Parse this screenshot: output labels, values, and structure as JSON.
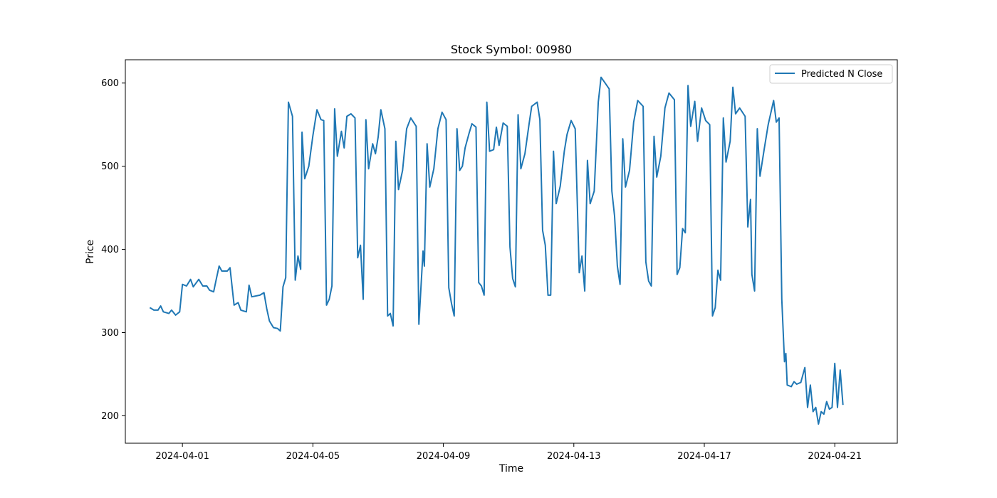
{
  "chart_data": {
    "type": "line",
    "title": "Stock Symbol: 00980",
    "xlabel": "Time",
    "ylabel": "Price",
    "xlim": [
      "2024-03-30T06:00",
      "2024-04-22T22:00"
    ],
    "ylim": [
      167,
      628
    ],
    "x_ticks": [
      "2024-04-01",
      "2024-04-05",
      "2024-04-09",
      "2024-04-13",
      "2024-04-17",
      "2024-04-21"
    ],
    "y_ticks": [
      200,
      300,
      400,
      500,
      600
    ],
    "grid": false,
    "legend_position": "top-right",
    "series": [
      {
        "name": "Predicted N Close",
        "color": "#1f77b4",
        "points": [
          [
            "2024-03-31T00:00",
            330
          ],
          [
            "2024-03-31T03:00",
            327
          ],
          [
            "2024-03-31T06:00",
            327
          ],
          [
            "2024-03-31T08:00",
            332
          ],
          [
            "2024-03-31T10:00",
            325
          ],
          [
            "2024-03-31T14:00",
            323
          ],
          [
            "2024-03-31T16:00",
            327
          ],
          [
            "2024-03-31T19:00",
            321
          ],
          [
            "2024-03-31T22:00",
            325
          ],
          [
            "2024-04-01T00:00",
            358
          ],
          [
            "2024-04-01T03:00",
            356
          ],
          [
            "2024-04-01T06:00",
            364
          ],
          [
            "2024-04-01T08:00",
            355
          ],
          [
            "2024-04-01T12:00",
            364
          ],
          [
            "2024-04-01T15:00",
            356
          ],
          [
            "2024-04-01T18:00",
            356
          ],
          [
            "2024-04-01T20:00",
            351
          ],
          [
            "2024-04-01T23:00",
            349
          ],
          [
            "2024-04-02T01:00",
            365
          ],
          [
            "2024-04-02T03:00",
            380
          ],
          [
            "2024-04-02T05:00",
            374
          ],
          [
            "2024-04-02T09:00",
            374
          ],
          [
            "2024-04-02T11:00",
            378
          ],
          [
            "2024-04-02T14:00",
            333
          ],
          [
            "2024-04-02T17:00",
            336
          ],
          [
            "2024-04-02T19:00",
            327
          ],
          [
            "2024-04-02T23:00",
            325
          ],
          [
            "2024-04-03T01:00",
            357
          ],
          [
            "2024-04-03T03:00",
            343
          ],
          [
            "2024-04-03T09:00",
            345
          ],
          [
            "2024-04-03T12:00",
            348
          ],
          [
            "2024-04-03T14:00",
            329
          ],
          [
            "2024-04-03T16:00",
            314
          ],
          [
            "2024-04-03T19:00",
            306
          ],
          [
            "2024-04-03T22:00",
            305
          ],
          [
            "2024-04-04T00:00",
            302
          ],
          [
            "2024-04-04T02:00",
            355
          ],
          [
            "2024-04-04T04:00",
            366
          ],
          [
            "2024-04-04T06:00",
            577
          ],
          [
            "2024-04-04T09:00",
            560
          ],
          [
            "2024-04-04T11:00",
            363
          ],
          [
            "2024-04-04T13:00",
            392
          ],
          [
            "2024-04-04T15:00",
            376
          ],
          [
            "2024-04-04T16:00",
            541
          ],
          [
            "2024-04-04T18:00",
            485
          ],
          [
            "2024-04-04T21:00",
            500
          ],
          [
            "2024-04-05T00:00",
            537
          ],
          [
            "2024-04-05T03:00",
            568
          ],
          [
            "2024-04-05T06:00",
            556
          ],
          [
            "2024-04-05T08:00",
            555
          ],
          [
            "2024-04-05T10:00",
            333
          ],
          [
            "2024-04-05T12:00",
            340
          ],
          [
            "2024-04-05T14:00",
            356
          ],
          [
            "2024-04-05T16:00",
            569
          ],
          [
            "2024-04-05T18:00",
            512
          ],
          [
            "2024-04-05T21:00",
            542
          ],
          [
            "2024-04-05T23:00",
            522
          ],
          [
            "2024-04-06T01:00",
            560
          ],
          [
            "2024-04-06T04:00",
            563
          ],
          [
            "2024-04-06T07:00",
            558
          ],
          [
            "2024-04-06T09:00",
            390
          ],
          [
            "2024-04-06T11:00",
            405
          ],
          [
            "2024-04-06T13:00",
            340
          ],
          [
            "2024-04-06T15:00",
            556
          ],
          [
            "2024-04-06T17:00",
            497
          ],
          [
            "2024-04-06T20:00",
            527
          ],
          [
            "2024-04-06T22:00",
            515
          ],
          [
            "2024-04-07T00:00",
            535
          ],
          [
            "2024-04-07T02:00",
            568
          ],
          [
            "2024-04-07T05:00",
            545
          ],
          [
            "2024-04-07T07:00",
            320
          ],
          [
            "2024-04-07T09:00",
            323
          ],
          [
            "2024-04-07T11:00",
            308
          ],
          [
            "2024-04-07T13:00",
            530
          ],
          [
            "2024-04-07T15:00",
            472
          ],
          [
            "2024-04-07T18:00",
            495
          ],
          [
            "2024-04-07T21:00",
            545
          ],
          [
            "2024-04-08T00:00",
            558
          ],
          [
            "2024-04-08T04:00",
            548
          ],
          [
            "2024-04-08T06:00",
            310
          ],
          [
            "2024-04-08T09:00",
            398
          ],
          [
            "2024-04-08T10:00",
            380
          ],
          [
            "2024-04-08T12:00",
            527
          ],
          [
            "2024-04-08T14:00",
            475
          ],
          [
            "2024-04-08T17:00",
            497
          ],
          [
            "2024-04-08T20:00",
            545
          ],
          [
            "2024-04-08T23:00",
            565
          ],
          [
            "2024-04-09T02:00",
            556
          ],
          [
            "2024-04-09T04:00",
            354
          ],
          [
            "2024-04-09T06:00",
            335
          ],
          [
            "2024-04-09T08:00",
            320
          ],
          [
            "2024-04-09T10:00",
            545
          ],
          [
            "2024-04-09T12:00",
            495
          ],
          [
            "2024-04-09T14:00",
            500
          ],
          [
            "2024-04-09T16:00",
            522
          ],
          [
            "2024-04-09T19:00",
            540
          ],
          [
            "2024-04-09T21:00",
            551
          ],
          [
            "2024-04-10T00:00",
            547
          ],
          [
            "2024-04-10T02:00",
            360
          ],
          [
            "2024-04-10T04:00",
            356
          ],
          [
            "2024-04-10T06:00",
            345
          ],
          [
            "2024-04-10T08:00",
            577
          ],
          [
            "2024-04-10T10:00",
            518
          ],
          [
            "2024-04-10T13:00",
            520
          ],
          [
            "2024-04-10T15:00",
            547
          ],
          [
            "2024-04-10T17:00",
            525
          ],
          [
            "2024-04-10T20:00",
            552
          ],
          [
            "2024-04-10T23:00",
            548
          ],
          [
            "2024-04-11T01:00",
            403
          ],
          [
            "2024-04-11T03:00",
            365
          ],
          [
            "2024-04-11T05:00",
            355
          ],
          [
            "2024-04-11T07:00",
            562
          ],
          [
            "2024-04-11T09:00",
            497
          ],
          [
            "2024-04-11T12:00",
            515
          ],
          [
            "2024-04-11T15:00",
            550
          ],
          [
            "2024-04-11T17:00",
            572
          ],
          [
            "2024-04-11T21:00",
            577
          ],
          [
            "2024-04-11T23:00",
            556
          ],
          [
            "2024-04-12T01:00",
            423
          ],
          [
            "2024-04-12T03:00",
            405
          ],
          [
            "2024-04-12T05:00",
            345
          ],
          [
            "2024-04-12T07:00",
            345
          ],
          [
            "2024-04-12T09:00",
            518
          ],
          [
            "2024-04-12T11:00",
            455
          ],
          [
            "2024-04-12T14:00",
            476
          ],
          [
            "2024-04-12T17:00",
            518
          ],
          [
            "2024-04-12T19:00",
            538
          ],
          [
            "2024-04-12T22:00",
            555
          ],
          [
            "2024-04-13T01:00",
            545
          ],
          [
            "2024-04-13T04:00",
            372
          ],
          [
            "2024-04-13T06:00",
            392
          ],
          [
            "2024-04-13T08:00",
            350
          ],
          [
            "2024-04-13T10:00",
            507
          ],
          [
            "2024-04-13T12:00",
            455
          ],
          [
            "2024-04-13T15:00",
            470
          ],
          [
            "2024-04-13T18:00",
            577
          ],
          [
            "2024-04-13T20:00",
            607
          ],
          [
            "2024-04-13T23:00",
            600
          ],
          [
            "2024-04-14T02:00",
            593
          ],
          [
            "2024-04-14T04:00",
            470
          ],
          [
            "2024-04-14T06:00",
            440
          ],
          [
            "2024-04-14T08:00",
            380
          ],
          [
            "2024-04-14T10:00",
            358
          ],
          [
            "2024-04-14T12:00",
            533
          ],
          [
            "2024-04-14T14:00",
            475
          ],
          [
            "2024-04-14T17:00",
            495
          ],
          [
            "2024-04-14T20:00",
            553
          ],
          [
            "2024-04-14T23:00",
            579
          ],
          [
            "2024-04-15T03:00",
            572
          ],
          [
            "2024-04-15T05:00",
            385
          ],
          [
            "2024-04-15T07:00",
            362
          ],
          [
            "2024-04-15T09:00",
            356
          ],
          [
            "2024-04-15T11:00",
            536
          ],
          [
            "2024-04-15T13:00",
            487
          ],
          [
            "2024-04-15T16:00",
            512
          ],
          [
            "2024-04-15T19:00",
            570
          ],
          [
            "2024-04-15T22:00",
            588
          ],
          [
            "2024-04-16T02:00",
            580
          ],
          [
            "2024-04-16T04:00",
            370
          ],
          [
            "2024-04-16T06:00",
            378
          ],
          [
            "2024-04-16T08:00",
            425
          ],
          [
            "2024-04-16T10:00",
            420
          ],
          [
            "2024-04-16T12:00",
            597
          ],
          [
            "2024-04-16T14:00",
            548
          ],
          [
            "2024-04-16T17:00",
            578
          ],
          [
            "2024-04-16T19:00",
            530
          ],
          [
            "2024-04-16T22:00",
            570
          ],
          [
            "2024-04-17T01:00",
            555
          ],
          [
            "2024-04-17T04:00",
            550
          ],
          [
            "2024-04-17T06:00",
            320
          ],
          [
            "2024-04-17T08:00",
            330
          ],
          [
            "2024-04-17T10:00",
            375
          ],
          [
            "2024-04-17T12:00",
            363
          ],
          [
            "2024-04-17T14:00",
            558
          ],
          [
            "2024-04-17T16:00",
            505
          ],
          [
            "2024-04-17T19:00",
            530
          ],
          [
            "2024-04-17T21:00",
            595
          ],
          [
            "2024-04-17T23:00",
            563
          ],
          [
            "2024-04-18T02:00",
            570
          ],
          [
            "2024-04-18T06:00",
            560
          ],
          [
            "2024-04-18T08:00",
            427
          ],
          [
            "2024-04-18T10:00",
            460
          ],
          [
            "2024-04-18T11:00",
            370
          ],
          [
            "2024-04-18T13:00",
            350
          ],
          [
            "2024-04-18T15:00",
            545
          ],
          [
            "2024-04-18T17:00",
            488
          ],
          [
            "2024-04-18T20:00",
            520
          ],
          [
            "2024-04-18T23:00",
            550
          ],
          [
            "2024-04-19T03:00",
            579
          ],
          [
            "2024-04-19T05:00",
            553
          ],
          [
            "2024-04-19T07:00",
            558
          ],
          [
            "2024-04-19T09:00",
            340
          ],
          [
            "2024-04-19T11:00",
            265
          ],
          [
            "2024-04-19T12:00",
            275
          ],
          [
            "2024-04-19T13:00",
            237
          ],
          [
            "2024-04-19T16:00",
            235
          ],
          [
            "2024-04-19T18:00",
            241
          ],
          [
            "2024-04-19T20:00",
            238
          ],
          [
            "2024-04-19T23:00",
            240
          ],
          [
            "2024-04-20T02:00",
            258
          ],
          [
            "2024-04-20T04:00",
            210
          ],
          [
            "2024-04-20T06:00",
            237
          ],
          [
            "2024-04-20T08:00",
            205
          ],
          [
            "2024-04-20T10:00",
            210
          ],
          [
            "2024-04-20T12:00",
            190
          ],
          [
            "2024-04-20T14:00",
            205
          ],
          [
            "2024-04-20T16:00",
            202
          ],
          [
            "2024-04-20T18:00",
            217
          ],
          [
            "2024-04-20T20:00",
            208
          ],
          [
            "2024-04-20T22:00",
            210
          ],
          [
            "2024-04-21T00:00",
            263
          ],
          [
            "2024-04-21T02:00",
            210
          ],
          [
            "2024-04-21T04:00",
            255
          ],
          [
            "2024-04-21T06:00",
            213
          ]
        ]
      }
    ]
  }
}
